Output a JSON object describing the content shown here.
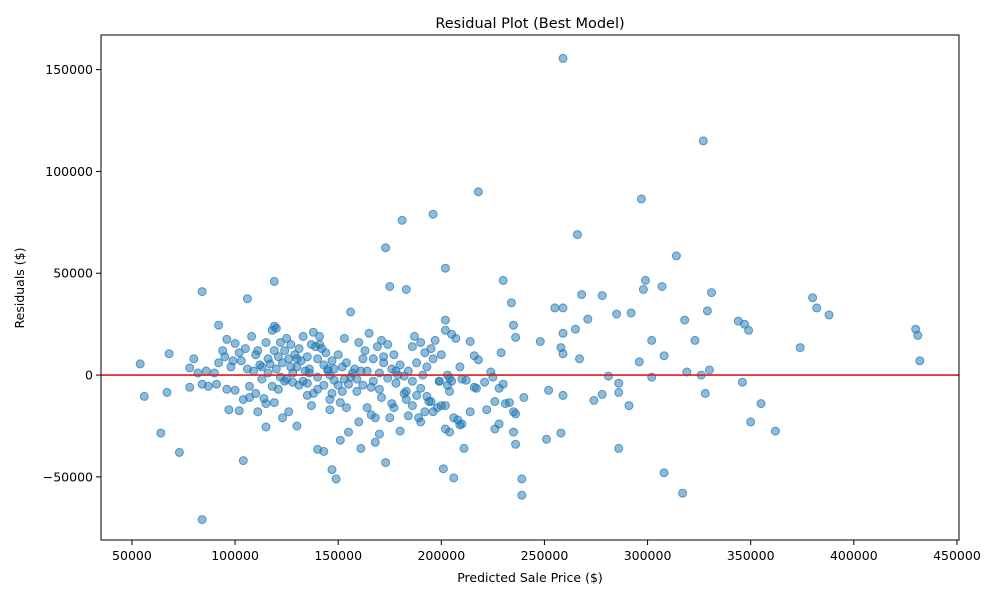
{
  "chart_data": {
    "type": "scatter",
    "title": "Residual Plot (Best Model)",
    "xlabel": "Predicted Sale Price ($)",
    "ylabel": "Residuals ($)",
    "xlim": [
      35000,
      451000
    ],
    "ylim": [
      -81000,
      167000
    ],
    "xticks": [
      50000,
      100000,
      150000,
      200000,
      250000,
      300000,
      350000,
      400000,
      450000
    ],
    "yticks": [
      -50000,
      0,
      50000,
      100000,
      150000
    ],
    "xtick_labels": [
      "50000",
      "100000",
      "150000",
      "200000",
      "250000",
      "300000",
      "350000",
      "400000",
      "450000"
    ],
    "ytick_labels": [
      "−50000",
      "0",
      "50000",
      "100000",
      "150000"
    ],
    "grid": false,
    "reference_line": {
      "y": 0,
      "color": "#e41a1c"
    },
    "point_color": "#1f77b4",
    "points": [
      [
        259000,
        155500
      ],
      [
        327000,
        115000
      ],
      [
        218000,
        90000
      ],
      [
        297000,
        86500
      ],
      [
        196000,
        79000
      ],
      [
        181000,
        76000
      ],
      [
        266000,
        69000
      ],
      [
        173000,
        62500
      ],
      [
        314000,
        58500
      ],
      [
        202000,
        52500
      ],
      [
        230000,
        46500
      ],
      [
        119000,
        46000
      ],
      [
        299000,
        46500
      ],
      [
        175000,
        43500
      ],
      [
        183000,
        42000
      ],
      [
        307000,
        43500
      ],
      [
        84000,
        41000
      ],
      [
        278000,
        39000
      ],
      [
        331000,
        40500
      ],
      [
        380000,
        38000
      ],
      [
        106000,
        37500
      ],
      [
        234000,
        35500
      ],
      [
        382000,
        33000
      ],
      [
        255000,
        33000
      ],
      [
        259000,
        33000
      ],
      [
        268000,
        39500
      ],
      [
        298000,
        42000
      ],
      [
        329000,
        31500
      ],
      [
        156000,
        31000
      ],
      [
        388000,
        29500
      ],
      [
        285000,
        30000
      ],
      [
        292000,
        30500
      ],
      [
        318000,
        27000
      ],
      [
        344000,
        26500
      ],
      [
        347000,
        25000
      ],
      [
        202000,
        27000
      ],
      [
        271000,
        27500
      ],
      [
        92000,
        24500
      ],
      [
        119000,
        24000
      ],
      [
        235000,
        24500
      ],
      [
        349000,
        22000
      ],
      [
        430000,
        22500
      ],
      [
        431000,
        19500
      ],
      [
        259000,
        20500
      ],
      [
        265000,
        22500
      ],
      [
        302000,
        17000
      ],
      [
        323000,
        17000
      ],
      [
        374000,
        13500
      ],
      [
        248000,
        16500
      ],
      [
        236000,
        18500
      ],
      [
        258000,
        13500
      ],
      [
        259000,
        10500
      ],
      [
        267000,
        8000
      ],
      [
        296000,
        6500
      ],
      [
        308000,
        9500
      ],
      [
        330000,
        2500
      ],
      [
        319000,
        1500
      ],
      [
        432000,
        7000
      ],
      [
        328000,
        -9000
      ],
      [
        281000,
        -500
      ],
      [
        286000,
        -4000
      ],
      [
        286000,
        -8500
      ],
      [
        278000,
        -9500
      ],
      [
        274000,
        -12500
      ],
      [
        291000,
        -15000
      ],
      [
        302000,
        -1000
      ],
      [
        326000,
        0
      ],
      [
        346000,
        -3500
      ],
      [
        355000,
        -14000
      ],
      [
        350000,
        -23000
      ],
      [
        362000,
        -27500
      ],
      [
        286000,
        -36000
      ],
      [
        308000,
        -48000
      ],
      [
        317000,
        -58000
      ],
      [
        252000,
        -7500
      ],
      [
        240000,
        -11000
      ],
      [
        259000,
        -10000
      ],
      [
        258000,
        -28500
      ],
      [
        251000,
        -31500
      ],
      [
        236000,
        -34000
      ],
      [
        239000,
        -51000
      ],
      [
        239000,
        -59000
      ],
      [
        231000,
        -14000
      ],
      [
        235000,
        -18000
      ],
      [
        236000,
        -19000
      ],
      [
        235000,
        -28000
      ],
      [
        228000,
        -24000
      ],
      [
        226000,
        -26500
      ],
      [
        222000,
        -17000
      ],
      [
        226000,
        -13000
      ],
      [
        230000,
        -4500
      ],
      [
        228000,
        -6500
      ],
      [
        221000,
        -3500
      ],
      [
        217000,
        -6500
      ],
      [
        224000,
        1500
      ],
      [
        225000,
        -1000
      ],
      [
        233000,
        -13500
      ],
      [
        229000,
        11000
      ],
      [
        216000,
        9500
      ],
      [
        218000,
        7500
      ],
      [
        214000,
        16500
      ],
      [
        209000,
        4000
      ],
      [
        212000,
        -2500
      ],
      [
        205000,
        -3000
      ],
      [
        203000,
        -5000
      ],
      [
        214000,
        -18000
      ],
      [
        208000,
        -22000
      ],
      [
        209000,
        -24500
      ],
      [
        211000,
        -36000
      ],
      [
        206000,
        -50500
      ],
      [
        201000,
        -46000
      ],
      [
        202000,
        -26500
      ],
      [
        204000,
        -28000
      ],
      [
        198000,
        -16000
      ],
      [
        196000,
        -18000
      ],
      [
        194000,
        -13000
      ],
      [
        192000,
        -18000
      ],
      [
        190000,
        -23000
      ],
      [
        186000,
        -15000
      ],
      [
        183000,
        -12000
      ],
      [
        180000,
        -27500
      ],
      [
        176000,
        -14000
      ],
      [
        175000,
        -21000
      ],
      [
        173000,
        -43000
      ],
      [
        168000,
        -33000
      ],
      [
        170000,
        -29000
      ],
      [
        166000,
        -19500
      ],
      [
        160000,
        -23000
      ],
      [
        161000,
        -36000
      ],
      [
        155000,
        -28000
      ],
      [
        151000,
        -32000
      ],
      [
        149000,
        -51000
      ],
      [
        147000,
        -46500
      ],
      [
        143000,
        -37500
      ],
      [
        140000,
        -36500
      ],
      [
        137000,
        -15000
      ],
      [
        146000,
        -12000
      ],
      [
        151000,
        -13500
      ],
      [
        154000,
        -16000
      ],
      [
        146000,
        -17000
      ],
      [
        152000,
        -8000
      ],
      [
        135000,
        -10000
      ],
      [
        130000,
        -25000
      ],
      [
        126000,
        -18000
      ],
      [
        123000,
        -21000
      ],
      [
        115000,
        -25500
      ],
      [
        111000,
        -18000
      ],
      [
        104000,
        -42000
      ],
      [
        102000,
        -17500
      ],
      [
        97000,
        -17000
      ],
      [
        84000,
        -71000
      ],
      [
        73000,
        -38000
      ],
      [
        64000,
        -28500
      ],
      [
        56000,
        -10500
      ],
      [
        67000,
        -8500
      ],
      [
        78000,
        -6000
      ],
      [
        84000,
        -4500
      ],
      [
        87000,
        -5500
      ],
      [
        91000,
        -4500
      ],
      [
        96000,
        -7000
      ],
      [
        100000,
        -7500
      ],
      [
        104000,
        -12000
      ],
      [
        107000,
        -11000
      ],
      [
        110000,
        -9000
      ],
      [
        114000,
        -11500
      ],
      [
        119000,
        -13500
      ],
      [
        115000,
        -14000
      ],
      [
        121000,
        -7000
      ],
      [
        118000,
        -5500
      ],
      [
        113000,
        -2000
      ],
      [
        107000,
        -5500
      ],
      [
        124000,
        -3000
      ],
      [
        128000,
        -3500
      ],
      [
        133000,
        -3000
      ],
      [
        138000,
        -9000
      ],
      [
        140000,
        -7000
      ],
      [
        143000,
        -5000
      ],
      [
        148000,
        -2500
      ],
      [
        155000,
        -4500
      ],
      [
        159000,
        -2000
      ],
      [
        162000,
        -5000
      ],
      [
        166000,
        -6000
      ],
      [
        170000,
        -7000
      ],
      [
        174000,
        -1500
      ],
      [
        178000,
        -4000
      ],
      [
        182000,
        -9000
      ],
      [
        186000,
        -3000
      ],
      [
        190000,
        -6500
      ],
      [
        193000,
        -10500
      ],
      [
        199000,
        -3000
      ],
      [
        204000,
        -8000
      ],
      [
        202000,
        -15000
      ],
      [
        54000,
        5500
      ],
      [
        68000,
        10500
      ],
      [
        78000,
        3500
      ],
      [
        80000,
        8000
      ],
      [
        82000,
        1000
      ],
      [
        86000,
        2000
      ],
      [
        90000,
        1000
      ],
      [
        92000,
        6000
      ],
      [
        94000,
        12000
      ],
      [
        96000,
        17500
      ],
      [
        99000,
        7000
      ],
      [
        100000,
        15500
      ],
      [
        102000,
        11000
      ],
      [
        105000,
        13000
      ],
      [
        106000,
        3000
      ],
      [
        108000,
        19000
      ],
      [
        110000,
        10000
      ],
      [
        112000,
        5000
      ],
      [
        113000,
        4000
      ],
      [
        115000,
        16000
      ],
      [
        116000,
        8000
      ],
      [
        117000,
        5500
      ],
      [
        118000,
        22000
      ],
      [
        119000,
        12000
      ],
      [
        120000,
        23000
      ],
      [
        121000,
        9000
      ],
      [
        122000,
        16000
      ],
      [
        123000,
        6000
      ],
      [
        124000,
        12000
      ],
      [
        125000,
        18000
      ],
      [
        126000,
        8000
      ],
      [
        127000,
        15000
      ],
      [
        128000,
        1000
      ],
      [
        129000,
        10000
      ],
      [
        130000,
        4000
      ],
      [
        131000,
        13000
      ],
      [
        132000,
        7000
      ],
      [
        133000,
        19000
      ],
      [
        134000,
        2000
      ],
      [
        135000,
        9000
      ],
      [
        136000,
        3000
      ],
      [
        137000,
        15000
      ],
      [
        138000,
        21000
      ],
      [
        139000,
        14000
      ],
      [
        140000,
        8000
      ],
      [
        141000,
        19000
      ],
      [
        142000,
        13000
      ],
      [
        143000,
        5000
      ],
      [
        144000,
        11000
      ],
      [
        145000,
        2000
      ],
      [
        146000,
        0
      ],
      [
        147000,
        7000
      ],
      [
        148000,
        3000
      ],
      [
        150000,
        10000
      ],
      [
        152000,
        4000
      ],
      [
        153000,
        18000
      ],
      [
        154000,
        6000
      ],
      [
        156000,
        -1000
      ],
      [
        158000,
        3000
      ],
      [
        160000,
        16000
      ],
      [
        162000,
        8000
      ],
      [
        163000,
        12000
      ],
      [
        164000,
        2000
      ],
      [
        165000,
        20500
      ],
      [
        167000,
        8000
      ],
      [
        169000,
        14000
      ],
      [
        170000,
        1000
      ],
      [
        171000,
        17000
      ],
      [
        172000,
        6000
      ],
      [
        174000,
        15000
      ],
      [
        176000,
        3000
      ],
      [
        177000,
        10000
      ],
      [
        179000,
        0
      ],
      [
        180000,
        5000
      ],
      [
        182000,
        -500
      ],
      [
        184000,
        2000
      ],
      [
        186000,
        14000
      ],
      [
        187000,
        19000
      ],
      [
        188000,
        6000
      ],
      [
        190000,
        16000
      ],
      [
        191000,
        0
      ],
      [
        192000,
        11000
      ],
      [
        193000,
        4000
      ],
      [
        195000,
        13000
      ],
      [
        196000,
        8000
      ],
      [
        197000,
        17000
      ],
      [
        199000,
        -3000
      ],
      [
        200000,
        10000
      ],
      [
        202000,
        22000
      ],
      [
        203000,
        0
      ],
      [
        204000,
        -1500
      ],
      [
        205000,
        20000
      ],
      [
        207000,
        18000
      ],
      [
        210000,
        -2000
      ],
      [
        120000,
        3000
      ],
      [
        125000,
        -2000
      ],
      [
        130000,
        8000
      ],
      [
        135000,
        -4000
      ],
      [
        140000,
        -1000
      ],
      [
        145000,
        3000
      ],
      [
        150000,
        -5000
      ],
      [
        157000,
        1000
      ],
      [
        161000,
        2000
      ],
      [
        167000,
        -3000
      ],
      [
        172000,
        9000
      ],
      [
        178000,
        2000
      ],
      [
        183000,
        -8000
      ],
      [
        188000,
        -10000
      ],
      [
        95000,
        9000
      ],
      [
        98000,
        4000
      ],
      [
        103000,
        7000
      ],
      [
        109000,
        2000
      ],
      [
        111000,
        12000
      ],
      [
        116000,
        1000
      ],
      [
        122000,
        -1000
      ],
      [
        127000,
        4000
      ],
      [
        131000,
        -5000
      ],
      [
        136000,
        1000
      ],
      [
        141000,
        15000
      ],
      [
        147000,
        -9000
      ],
      [
        153000,
        -2000
      ],
      [
        159000,
        -8000
      ],
      [
        164000,
        -16000
      ],
      [
        168000,
        -21000
      ],
      [
        171000,
        -11000
      ],
      [
        177000,
        -16000
      ],
      [
        184000,
        -20000
      ],
      [
        189000,
        -21000
      ],
      [
        195000,
        -13000
      ],
      [
        200000,
        -15000
      ],
      [
        206000,
        -21000
      ],
      [
        210000,
        -24000
      ],
      [
        216000,
        -6000
      ]
    ]
  }
}
